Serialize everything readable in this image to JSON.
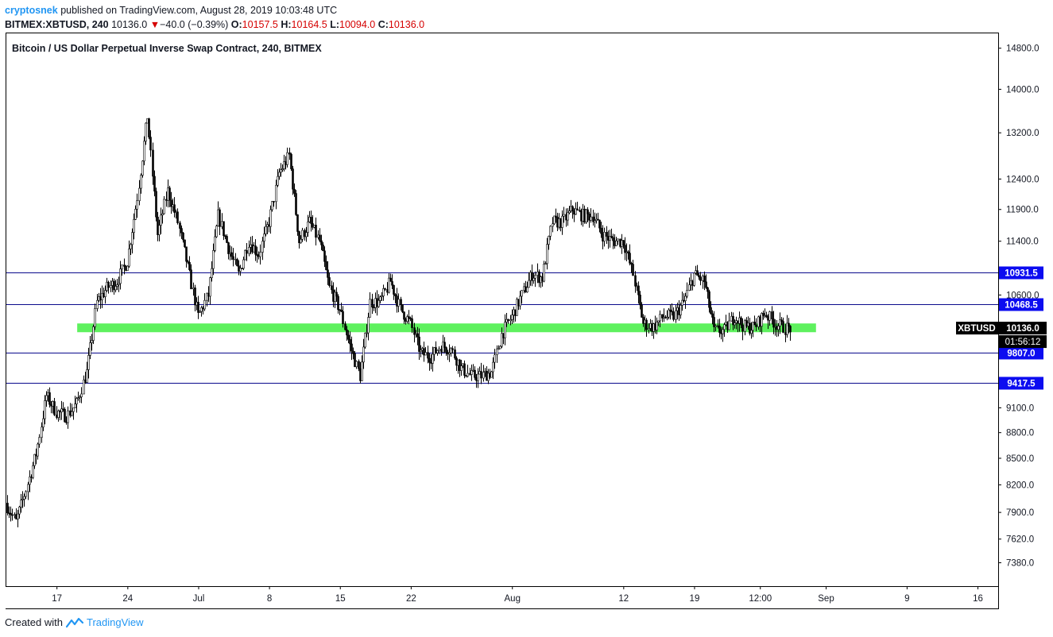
{
  "header": {
    "author": "cryptosnek",
    "published_text": "published on TradingView.com, August 28, 2019 10:03:48 UTC",
    "symbol": "BITMEX:XBTUSD, 240",
    "last": "10136.0",
    "change_arrow": "▼",
    "change": "−40.0 (−0.39%)",
    "o_label": "O:",
    "o_value": "10157.5",
    "h_label": "H:",
    "h_value": "10164.5",
    "l_label": "L:",
    "l_value": "10094.0",
    "c_label": "C:",
    "c_value": "10136.0"
  },
  "footer": {
    "created_with": "Created with",
    "brand": "TradingView"
  },
  "colors": {
    "candle": "#000000",
    "hline": "#0a0a8c",
    "zone": "#5ef15e",
    "label_bg": "#0c0cf0",
    "price_tag_bg": "#000000",
    "brand": "#2196f3",
    "down": "#d50000"
  },
  "chart_data": {
    "type": "candlestick",
    "title": "Bitcoin / US Dollar Perpetual Inverse Swap Contract, 240, BITMEX",
    "symbol": "XBTUSD",
    "y_scale": "log",
    "ylim": [
      7150,
      15100
    ],
    "y_ticks": [
      "14800.0",
      "14000.0",
      "13200.0",
      "12400.0",
      "11900.0",
      "11400.0",
      "10600.0",
      "9100.0",
      "8800.0",
      "8500.0",
      "8200.0",
      "7900.0",
      "7620.0",
      "7380.0"
    ],
    "x_ticks": [
      "17",
      "24",
      "Jul",
      "8",
      "15",
      "22",
      "Aug",
      "12",
      "19",
      "12:00",
      "Sep",
      "9",
      "16"
    ],
    "x_range": [
      "2019-06-12",
      "2019-09-18"
    ],
    "price_path": [
      {
        "t": "2019-06-12",
        "p": 8000
      },
      {
        "t": "2019-06-13",
        "p": 7800
      },
      {
        "t": "2019-06-14",
        "p": 8150
      },
      {
        "t": "2019-06-15",
        "p": 8550
      },
      {
        "t": "2019-06-16",
        "p": 9250
      },
      {
        "t": "2019-06-17",
        "p": 9050
      },
      {
        "t": "2019-06-18",
        "p": 9000
      },
      {
        "t": "2019-06-19",
        "p": 9150
      },
      {
        "t": "2019-06-20",
        "p": 9550
      },
      {
        "t": "2019-06-21",
        "p": 10500
      },
      {
        "t": "2019-06-22",
        "p": 10700
      },
      {
        "t": "2019-06-23",
        "p": 10800
      },
      {
        "t": "2019-06-24",
        "p": 11100
      },
      {
        "t": "2019-06-25",
        "p": 12100
      },
      {
        "t": "2019-06-26",
        "p": 13500
      },
      {
        "t": "2019-06-27",
        "p": 11500
      },
      {
        "t": "2019-06-28",
        "p": 12200
      },
      {
        "t": "2019-06-29",
        "p": 11700
      },
      {
        "t": "2019-06-30",
        "p": 11000
      },
      {
        "t": "2019-07-01",
        "p": 10300
      },
      {
        "t": "2019-07-02",
        "p": 10600
      },
      {
        "t": "2019-07-03",
        "p": 11800
      },
      {
        "t": "2019-07-04",
        "p": 11300
      },
      {
        "t": "2019-07-05",
        "p": 10900
      },
      {
        "t": "2019-07-06",
        "p": 11400
      },
      {
        "t": "2019-07-07",
        "p": 11200
      },
      {
        "t": "2019-07-08",
        "p": 11700
      },
      {
        "t": "2019-07-09",
        "p": 12500
      },
      {
        "t": "2019-07-10",
        "p": 12800
      },
      {
        "t": "2019-07-11",
        "p": 11400
      },
      {
        "t": "2019-07-12",
        "p": 11700
      },
      {
        "t": "2019-07-13",
        "p": 11400
      },
      {
        "t": "2019-07-14",
        "p": 10700
      },
      {
        "t": "2019-07-15",
        "p": 10400
      },
      {
        "t": "2019-07-16",
        "p": 9900
      },
      {
        "t": "2019-07-17",
        "p": 9500
      },
      {
        "t": "2019-07-18",
        "p": 10500
      },
      {
        "t": "2019-07-19",
        "p": 10500
      },
      {
        "t": "2019-07-20",
        "p": 10800
      },
      {
        "t": "2019-07-21",
        "p": 10400
      },
      {
        "t": "2019-07-22",
        "p": 10200
      },
      {
        "t": "2019-07-23",
        "p": 9800
      },
      {
        "t": "2019-07-24",
        "p": 9750
      },
      {
        "t": "2019-07-25",
        "p": 9900
      },
      {
        "t": "2019-07-26",
        "p": 9850
      },
      {
        "t": "2019-07-27",
        "p": 9600
      },
      {
        "t": "2019-07-28",
        "p": 9500
      },
      {
        "t": "2019-07-29",
        "p": 9500
      },
      {
        "t": "2019-07-30",
        "p": 9550
      },
      {
        "t": "2019-07-31",
        "p": 10050
      },
      {
        "t": "2019-08-01",
        "p": 10300
      },
      {
        "t": "2019-08-02",
        "p": 10600
      },
      {
        "t": "2019-08-03",
        "p": 10900
      },
      {
        "t": "2019-08-04",
        "p": 10850
      },
      {
        "t": "2019-08-05",
        "p": 11700
      },
      {
        "t": "2019-08-06",
        "p": 11700
      },
      {
        "t": "2019-08-07",
        "p": 11900
      },
      {
        "t": "2019-08-08",
        "p": 11800
      },
      {
        "t": "2019-08-09",
        "p": 11800
      },
      {
        "t": "2019-08-10",
        "p": 11500
      },
      {
        "t": "2019-08-11",
        "p": 11400
      },
      {
        "t": "2019-08-12",
        "p": 11400
      },
      {
        "t": "2019-08-13",
        "p": 10900
      },
      {
        "t": "2019-08-14",
        "p": 10200
      },
      {
        "t": "2019-08-15",
        "p": 10150
      },
      {
        "t": "2019-08-16",
        "p": 10300
      },
      {
        "t": "2019-08-17",
        "p": 10300
      },
      {
        "t": "2019-08-18",
        "p": 10500
      },
      {
        "t": "2019-08-19",
        "p": 10900
      },
      {
        "t": "2019-08-20",
        "p": 10800
      },
      {
        "t": "2019-08-21",
        "p": 10100
      },
      {
        "t": "2019-08-22",
        "p": 10100
      },
      {
        "t": "2019-08-23",
        "p": 10300
      },
      {
        "t": "2019-08-24",
        "p": 10150
      },
      {
        "t": "2019-08-25",
        "p": 10150
      },
      {
        "t": "2019-08-26",
        "p": 10350
      },
      {
        "t": "2019-08-27",
        "p": 10200
      },
      {
        "t": "2019-08-28",
        "p": 10136
      }
    ],
    "horizontal_lines": [
      {
        "price": 10931.5,
        "label": "10931.5"
      },
      {
        "price": 10468.5,
        "label": "10468.5"
      },
      {
        "price": 9807.0,
        "label": "9807.0"
      },
      {
        "price": 9417.5,
        "label": "9417.5"
      }
    ],
    "support_zone": {
      "low": 10080,
      "high": 10200,
      "from": "2019-06-19",
      "to": "2019-08-31"
    },
    "last_price": {
      "value": "10136.0",
      "label": "XBTUSD",
      "countdown": "01:56:12"
    }
  }
}
